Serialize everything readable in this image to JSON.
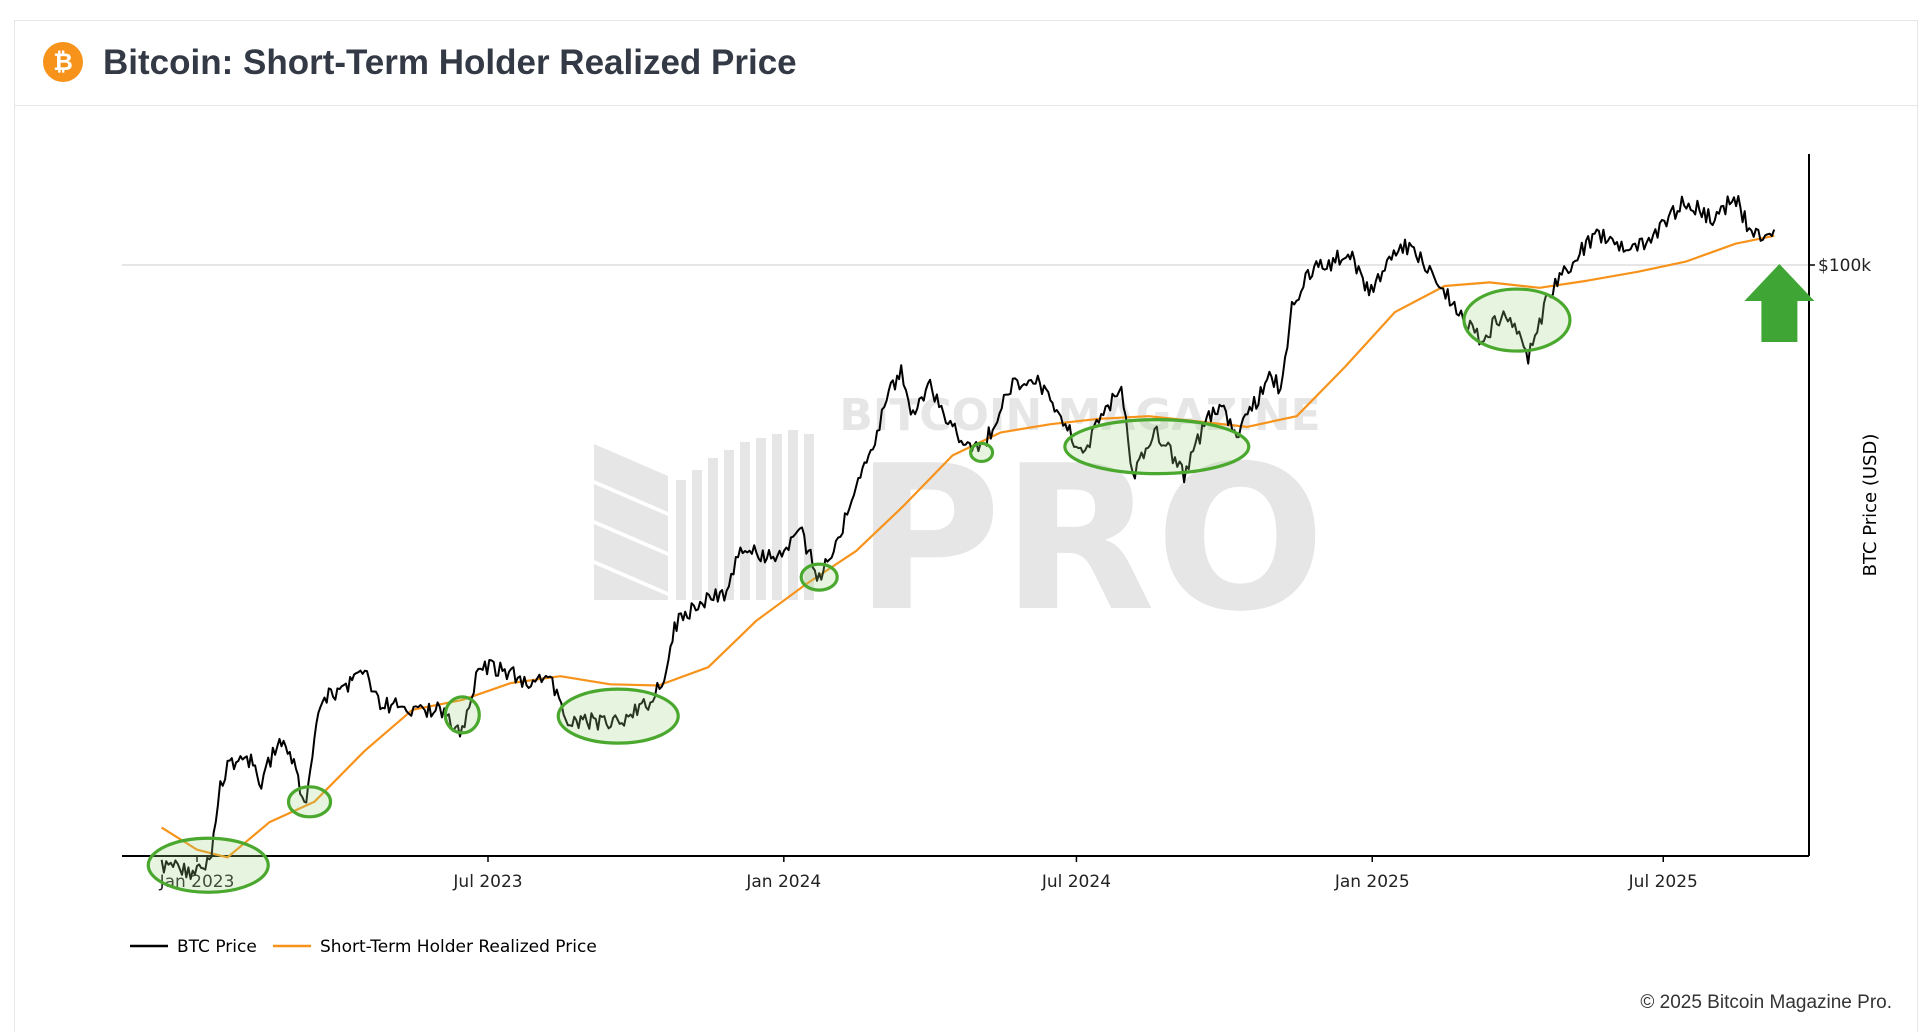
{
  "header": {
    "title": "Bitcoin: Short-Term Holder Realized Price",
    "logo_glyph": "₿"
  },
  "footer": {
    "copyright": "© 2025 Bitcoin Magazine Pro."
  },
  "watermark": {
    "top": "BITCOIN MAGAZINE",
    "main": "PRO"
  },
  "colors": {
    "btc_price": "#000000",
    "sth_realized": "#f7931a",
    "highlight_stroke": "#4aa82e",
    "highlight_fill": "rgba(160,215,130,0.25)",
    "arrow": "#3fa535"
  },
  "chart_data": {
    "type": "line",
    "ylabel": "BTC Price (USD)",
    "y_scale": "log",
    "ylim": [
      15000,
      160000
    ],
    "x_ticks": [
      "Jan 2023",
      "Jul 2023",
      "Jan 2024",
      "Jul 2024",
      "Jan 2025",
      "Jul 2025"
    ],
    "y_ticks": [
      {
        "value": 100000,
        "label": "$100k"
      }
    ],
    "legend": [
      "BTC Price",
      "Short-Term Holder Realized Price"
    ],
    "legend_position": "bottom-left",
    "series": [
      {
        "name": "BTC Price",
        "x": [
          "2022-12-10",
          "2022-12-20",
          "2023-01-01",
          "2023-01-10",
          "2023-01-14",
          "2023-01-20",
          "2023-02-01",
          "2023-02-10",
          "2023-02-20",
          "2023-03-01",
          "2023-03-10",
          "2023-03-15",
          "2023-03-20",
          "2023-04-01",
          "2023-04-14",
          "2023-04-25",
          "2023-05-10",
          "2023-05-20",
          "2023-06-01",
          "2023-06-15",
          "2023-06-25",
          "2023-07-10",
          "2023-07-25",
          "2023-08-10",
          "2023-08-17",
          "2023-08-25",
          "2023-09-10",
          "2023-09-25",
          "2023-10-10",
          "2023-10-20",
          "2023-10-25",
          "2023-11-10",
          "2023-11-25",
          "2023-12-05",
          "2023-12-15",
          "2023-12-28",
          "2024-01-11",
          "2024-01-23",
          "2024-02-01",
          "2024-02-15",
          "2024-02-28",
          "2024-03-05",
          "2024-03-14",
          "2024-03-20",
          "2024-04-01",
          "2024-04-15",
          "2024-05-01",
          "2024-05-10",
          "2024-05-21",
          "2024-06-07",
          "2024-06-20",
          "2024-07-05",
          "2024-07-15",
          "2024-07-29",
          "2024-08-05",
          "2024-08-20",
          "2024-09-06",
          "2024-09-20",
          "2024-09-28",
          "2024-10-10",
          "2024-10-29",
          "2024-11-05",
          "2024-11-12",
          "2024-11-22",
          "2024-12-05",
          "2024-12-17",
          "2024-12-30",
          "2025-01-20",
          "2025-01-31",
          "2025-02-10",
          "2025-02-28",
          "2025-03-10",
          "2025-03-25",
          "2025-04-08",
          "2025-04-22",
          "2025-05-10",
          "2025-05-22",
          "2025-06-05",
          "2025-06-22",
          "2025-07-14",
          "2025-07-25",
          "2025-08-02",
          "2025-08-14",
          "2025-08-22",
          "2025-09-01",
          "2025-09-08"
        ],
        "y": [
          17000,
          16800,
          16600,
          17400,
          20800,
          22700,
          23500,
          21800,
          24500,
          23200,
          20200,
          24500,
          28000,
          28500,
          30300,
          27500,
          27000,
          26900,
          27100,
          25100,
          30500,
          30400,
          29300,
          29400,
          26400,
          26000,
          26000,
          26300,
          27400,
          29900,
          34500,
          37000,
          37700,
          43500,
          42500,
          42300,
          46000,
          39500,
          43000,
          52000,
          61000,
          68000,
          73000,
          63500,
          69800,
          61500,
          57800,
          61500,
          70000,
          71500,
          64500,
          56800,
          64000,
          69000,
          54000,
          61000,
          54000,
          63500,
          65800,
          60500,
          72300,
          69300,
          88000,
          98000,
          100000,
          104000,
          93000,
          106000,
          101500,
          96500,
          84500,
          80000,
          87500,
          76500,
          93000,
          104000,
          110000,
          105000,
          107000,
          121000,
          117000,
          113500,
          123000,
          113000,
          108500,
          111000
        ]
      },
      {
        "name": "Short-Term Holder Realized Price",
        "x": [
          "2022-12-10",
          "2023-01-01",
          "2023-01-20",
          "2023-02-15",
          "2023-03-15",
          "2023-04-15",
          "2023-05-15",
          "2023-06-15",
          "2023-07-15",
          "2023-08-15",
          "2023-09-15",
          "2023-10-15",
          "2023-11-15",
          "2023-12-15",
          "2024-01-15",
          "2024-02-15",
          "2024-03-15",
          "2024-04-15",
          "2024-05-15",
          "2024-06-15",
          "2024-07-15",
          "2024-08-15",
          "2024-09-15",
          "2024-10-15",
          "2024-11-15",
          "2024-12-15",
          "2025-01-15",
          "2025-02-15",
          "2025-03-15",
          "2025-04-15",
          "2025-05-15",
          "2025-06-15",
          "2025-07-15",
          "2025-08-15",
          "2025-09-08"
        ],
        "y": [
          19000,
          17800,
          17400,
          19300,
          20500,
          23800,
          26900,
          27700,
          29100,
          29700,
          29000,
          28900,
          30500,
          35000,
          39000,
          43000,
          49000,
          57000,
          61000,
          62500,
          63500,
          64000,
          63000,
          62000,
          64000,
          74000,
          87000,
          94000,
          95000,
          93500,
          95500,
          98000,
          101000,
          106500,
          109000
        ]
      }
    ],
    "highlights": [
      {
        "date": "2023-01-08",
        "price": 17000
      },
      {
        "date": "2023-03-12",
        "price": 20500
      },
      {
        "date": "2023-06-15",
        "price": 26500
      },
      {
        "date": "2023-09-20",
        "price": 26400
      },
      {
        "date": "2024-01-23",
        "price": 39800
      },
      {
        "date": "2024-05-03",
        "price": 57500
      },
      {
        "date": "2024-08-20",
        "price": 58500
      },
      {
        "date": "2025-04-01",
        "price": 85000
      }
    ],
    "up_arrow_date": "2025-09-10"
  }
}
